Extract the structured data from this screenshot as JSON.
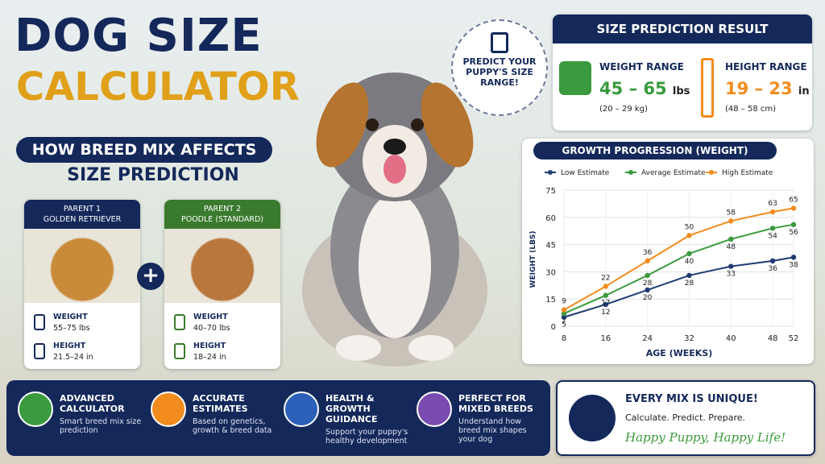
{
  "header": {
    "title_line1": "DOG SIZE",
    "title_line2": "CALCULATOR",
    "subtitle_line1": "HOW BREED MIX AFFECTS",
    "subtitle_line2": "SIZE PREDICTION"
  },
  "badge": "PREDICT YOUR PUPPY'S SIZE RANGE!",
  "parents": [
    {
      "label": "PARENT 1",
      "breed": "GOLDEN RETRIEVER",
      "weight_label": "WEIGHT",
      "weight": "55–75 lbs",
      "height_label": "HEIGHT",
      "height": "21.5–24 in"
    },
    {
      "label": "PARENT 2",
      "breed": "POODLE (STANDARD)",
      "weight_label": "WEIGHT",
      "weight": "40–70 lbs",
      "height_label": "HEIGHT",
      "height": "18–24 in"
    }
  ],
  "result": {
    "title": "SIZE PREDICTION RESULT",
    "weight_label": "WEIGHT RANGE",
    "weight": "45 – 65",
    "weight_unit": "lbs",
    "weight_metric": "(20 – 29 kg)",
    "height_label": "HEIGHT RANGE",
    "height": "19 – 23",
    "height_unit": "in",
    "height_metric": "(48 – 58 cm)"
  },
  "chart_data": {
    "type": "line",
    "title": "GROWTH PROGRESSION (WEIGHT)",
    "x_label": "AGE (WEEKS)",
    "y_label": "WEIGHT (LBS)",
    "x": [
      8,
      16,
      24,
      32,
      40,
      48,
      52
    ],
    "xlim": [
      8,
      52
    ],
    "xticks": [
      8,
      16,
      24,
      32,
      40,
      48,
      52
    ],
    "ylim": [
      0,
      75
    ],
    "yticks": [
      0,
      15,
      30,
      45,
      60,
      75
    ],
    "grid": true,
    "series": [
      {
        "name": "Low Estimate",
        "color": "#1f3b73",
        "values": [
          5,
          12,
          20,
          28,
          33,
          36,
          38
        ]
      },
      {
        "name": "Average Estimate",
        "color": "#3a9a3e",
        "values": [
          7,
          17,
          28,
          40,
          48,
          54,
          56
        ]
      },
      {
        "name": "High Estimate",
        "color": "#f28c1e",
        "values": [
          9,
          22,
          36,
          50,
          58,
          63,
          65
        ]
      }
    ]
  },
  "features": [
    {
      "title": "ADVANCED CALCULATOR",
      "text": "Smart breed mix size prediction"
    },
    {
      "title": "ACCURATE ESTIMATES",
      "text": "Based on genetics, growth & breed data"
    },
    {
      "title": "HEALTH & GROWTH GUIDANCE",
      "text": "Support your puppy's healthy development"
    },
    {
      "title": "PERFECT FOR MIXED BREEDS",
      "text": "Understand how breed mix shapes your dog"
    }
  ],
  "closing": {
    "title": "EVERY MIX IS UNIQUE!",
    "tagline": "Calculate. Predict. Prepare.",
    "slogan": "Happy Puppy, Happy Life!"
  }
}
